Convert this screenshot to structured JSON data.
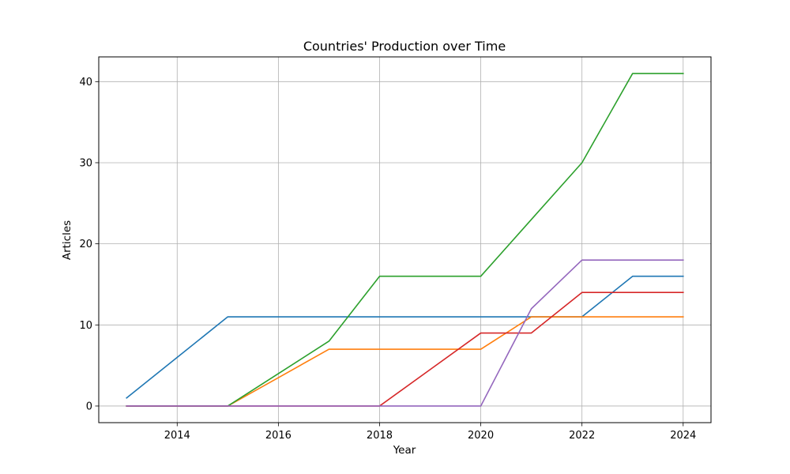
{
  "chart_data": {
    "type": "line",
    "title": "Countries' Production over Time",
    "xlabel": "Year",
    "ylabel": "Articles",
    "x": [
      2013,
      2014,
      2015,
      2016,
      2017,
      2018,
      2019,
      2020,
      2021,
      2022,
      2023,
      2024
    ],
    "xlim": [
      2012.45,
      2024.55
    ],
    "ylim": [
      -2.05,
      43.05
    ],
    "x_ticks": [
      2014,
      2016,
      2018,
      2020,
      2022,
      2024
    ],
    "y_ticks": [
      0,
      10,
      20,
      30,
      40
    ],
    "grid": true,
    "legend": "none",
    "series": [
      {
        "color": "#1f77b4",
        "values": [
          1,
          6,
          11,
          11,
          11,
          11,
          11,
          11,
          11,
          11,
          16,
          16
        ]
      },
      {
        "color": "#ff7f0e",
        "values": [
          0,
          0,
          0,
          3.5,
          7,
          7,
          7,
          7,
          11,
          11,
          11,
          11
        ]
      },
      {
        "color": "#2ca02c",
        "values": [
          0,
          0,
          0,
          4,
          8,
          16,
          16,
          16,
          23,
          30,
          41,
          41
        ]
      },
      {
        "color": "#d62728",
        "values": [
          0,
          0,
          0,
          0,
          0,
          0,
          4.5,
          9,
          9,
          14,
          14,
          14
        ]
      },
      {
        "color": "#9467bd",
        "values": [
          0,
          0,
          0,
          0,
          0,
          0,
          0,
          0,
          12,
          18,
          18,
          18
        ]
      }
    ]
  }
}
